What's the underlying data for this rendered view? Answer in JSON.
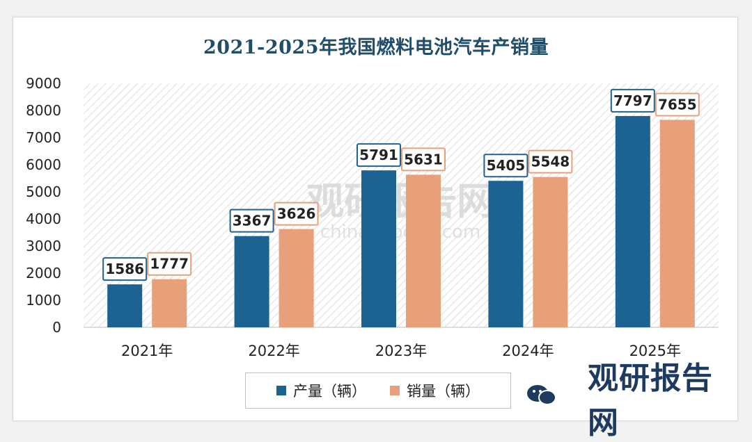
{
  "chart_data": {
    "type": "bar",
    "title": "2021-2025年我国燃料电池汽车产销量",
    "categories": [
      "2021年",
      "2022年",
      "2023年",
      "2024年",
      "2025年"
    ],
    "series": [
      {
        "name": "产量（辆）",
        "values": [
          1586,
          3367,
          5791,
          5405,
          7797
        ],
        "color": "#1c6391"
      },
      {
        "name": "销量（辆）",
        "values": [
          1777,
          3626,
          5631,
          5548,
          7655
        ],
        "color": "#e8a07a"
      }
    ],
    "ylim": [
      0,
      9000
    ],
    "yticks": [
      0,
      1000,
      2000,
      3000,
      4000,
      5000,
      6000,
      7000,
      8000,
      9000
    ],
    "legend_position": "bottom",
    "data_labels": true,
    "label_colors": {
      "产量（辆）": "#1c6391",
      "销量（辆）": "#e8a07a"
    }
  },
  "watermark": {
    "center_text": "观研报告网",
    "center_url": "chinabaogao.com",
    "corner_text": "观研报告网"
  }
}
